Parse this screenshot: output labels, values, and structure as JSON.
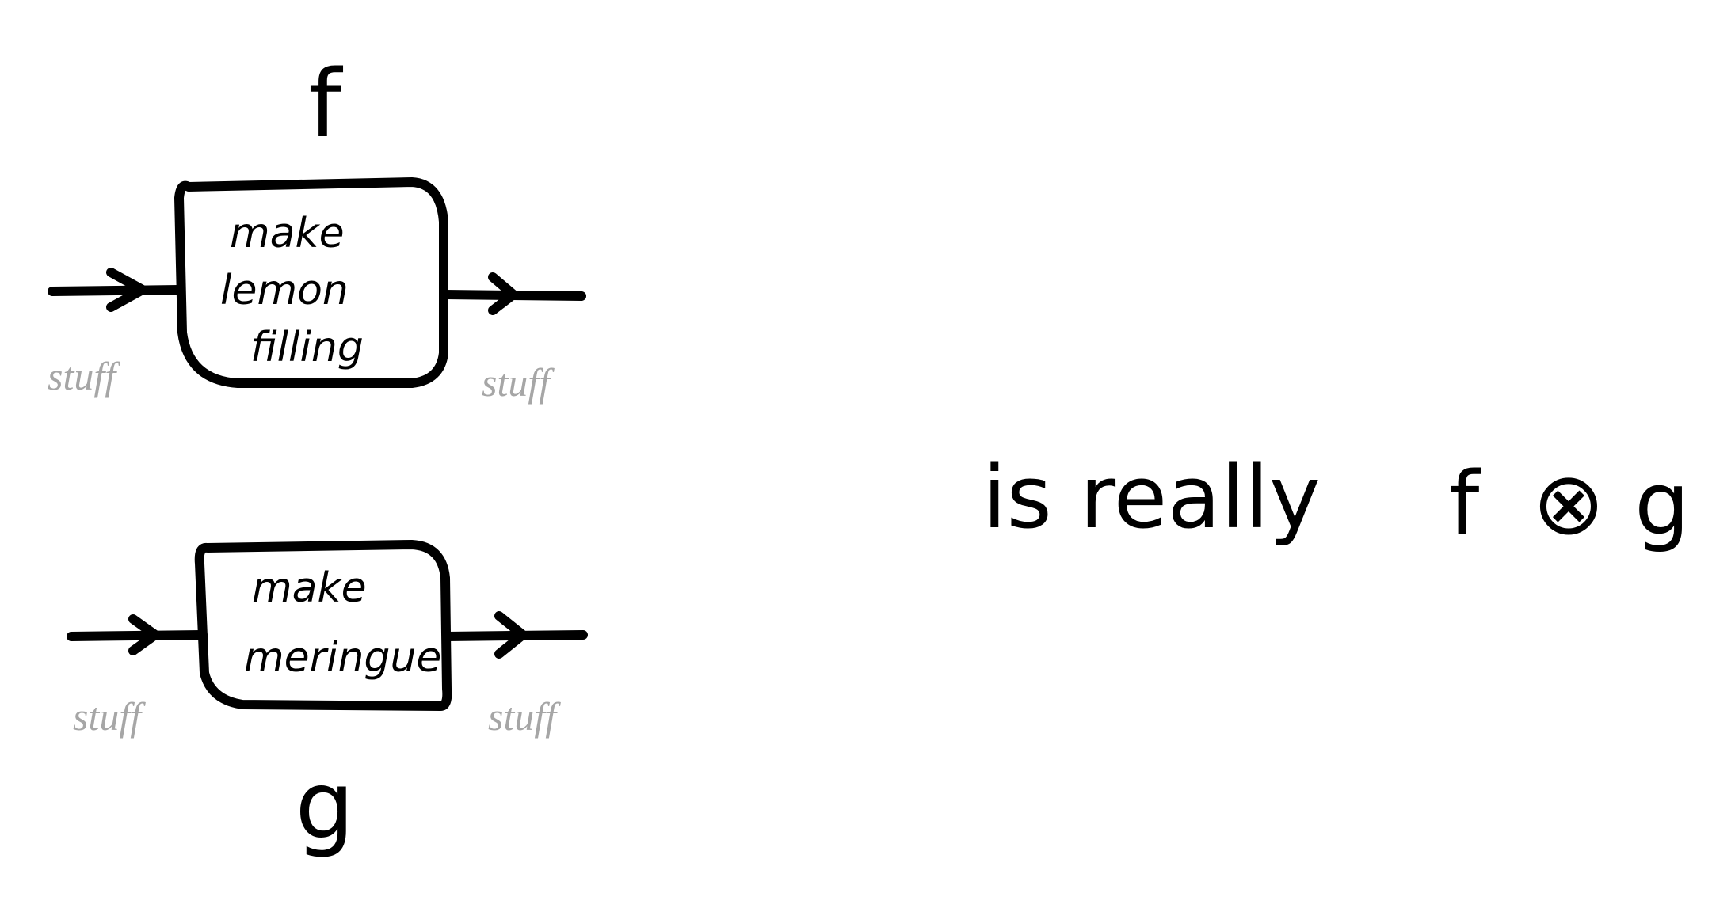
{
  "diagram": {
    "top_process": {
      "label": "f",
      "box_lines": [
        "make",
        "lemon",
        "filling"
      ],
      "input_label": "stuff",
      "output_label": "stuff"
    },
    "bottom_process": {
      "label": "g",
      "box_lines": [
        "make",
        "meringue"
      ],
      "input_label": "stuff",
      "output_label": "stuff"
    },
    "phrase": "is really",
    "composition": {
      "left": "f",
      "operator": "⊗",
      "right": "g"
    },
    "colors": {
      "ink": "#000000",
      "wire_label": "#a6a6a6",
      "background": "#ffffff"
    }
  }
}
